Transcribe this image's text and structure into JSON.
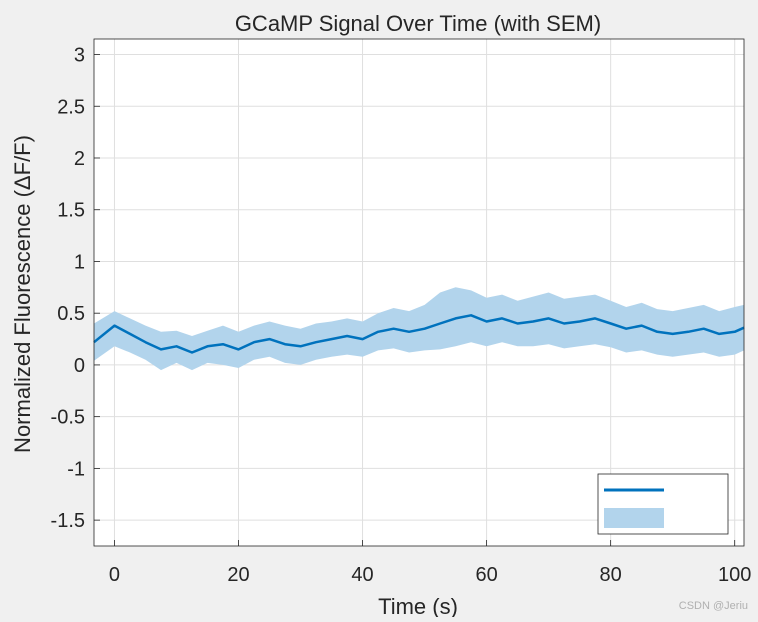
{
  "chart_data": {
    "type": "line",
    "title": "GCaMP Signal Over Time (with SEM)",
    "xlabel": "Time (s)",
    "ylabel": "Normalized Fluorescence (ΔF/F)",
    "xlim": [
      -3.3,
      101.5
    ],
    "ylim": [
      -1.75,
      3.15
    ],
    "x_ticks": [
      0,
      20,
      40,
      60,
      80,
      100
    ],
    "y_ticks": [
      -1.5,
      -1,
      -0.5,
      0,
      0.5,
      1,
      1.5,
      2,
      2.5,
      3
    ],
    "x_tick_labels": [
      "0",
      "20",
      "40",
      "60",
      "80",
      "100"
    ],
    "y_tick_labels": [
      "-1.5",
      "-1",
      "-0.5",
      "0",
      "0.5",
      "1",
      "1.5",
      "2",
      "2.5",
      "3"
    ],
    "grid": true,
    "legend": {
      "position": "bottom-right",
      "entries": [
        "",
        ""
      ]
    },
    "colors": {
      "line": "#0072BD",
      "band": "#b2d4ec",
      "grid": "#dfdfdf",
      "axes": "#262626",
      "background": "#f0f0f0",
      "plot_bg": "#ffffff"
    },
    "series": [
      {
        "x": [
          -3.3,
          0,
          2.5,
          5,
          7.5,
          10,
          12.5,
          15,
          17.5,
          20,
          22.5,
          25,
          27.5,
          30,
          32.5,
          35,
          37.5,
          40,
          42.5,
          45,
          47.5,
          50,
          52.5,
          55,
          57.5,
          60,
          62.5,
          65,
          67.5,
          70,
          72.5,
          75,
          77.5,
          80,
          82.5,
          85,
          87.5,
          90,
          92.5,
          95,
          97.5,
          100,
          101.5
        ],
        "values": [
          0.22,
          0.38,
          0.3,
          0.22,
          0.15,
          0.18,
          0.12,
          0.18,
          0.2,
          0.15,
          0.22,
          0.25,
          0.2,
          0.18,
          0.22,
          0.25,
          0.28,
          0.25,
          0.32,
          0.35,
          0.32,
          0.35,
          0.4,
          0.45,
          0.48,
          0.42,
          0.45,
          0.4,
          0.42,
          0.45,
          0.4,
          0.42,
          0.45,
          0.4,
          0.35,
          0.38,
          0.32,
          0.3,
          0.32,
          0.35,
          0.3,
          0.32,
          0.36
        ],
        "sem_upper": [
          0.4,
          0.52,
          0.45,
          0.38,
          0.32,
          0.33,
          0.28,
          0.33,
          0.38,
          0.32,
          0.38,
          0.42,
          0.38,
          0.35,
          0.4,
          0.42,
          0.45,
          0.42,
          0.5,
          0.55,
          0.52,
          0.58,
          0.7,
          0.75,
          0.72,
          0.65,
          0.68,
          0.62,
          0.66,
          0.7,
          0.64,
          0.66,
          0.68,
          0.62,
          0.56,
          0.6,
          0.54,
          0.52,
          0.55,
          0.58,
          0.52,
          0.56,
          0.58
        ],
        "sem_lower": [
          0.04,
          0.18,
          0.12,
          0.05,
          -0.05,
          0.02,
          -0.05,
          0.02,
          0.0,
          -0.03,
          0.05,
          0.08,
          0.02,
          0.0,
          0.05,
          0.08,
          0.1,
          0.08,
          0.14,
          0.16,
          0.12,
          0.14,
          0.15,
          0.18,
          0.22,
          0.18,
          0.22,
          0.18,
          0.18,
          0.2,
          0.16,
          0.18,
          0.2,
          0.17,
          0.12,
          0.14,
          0.1,
          0.08,
          0.1,
          0.12,
          0.08,
          0.1,
          0.14
        ]
      }
    ]
  },
  "watermark": "CSDN @Jeriu"
}
